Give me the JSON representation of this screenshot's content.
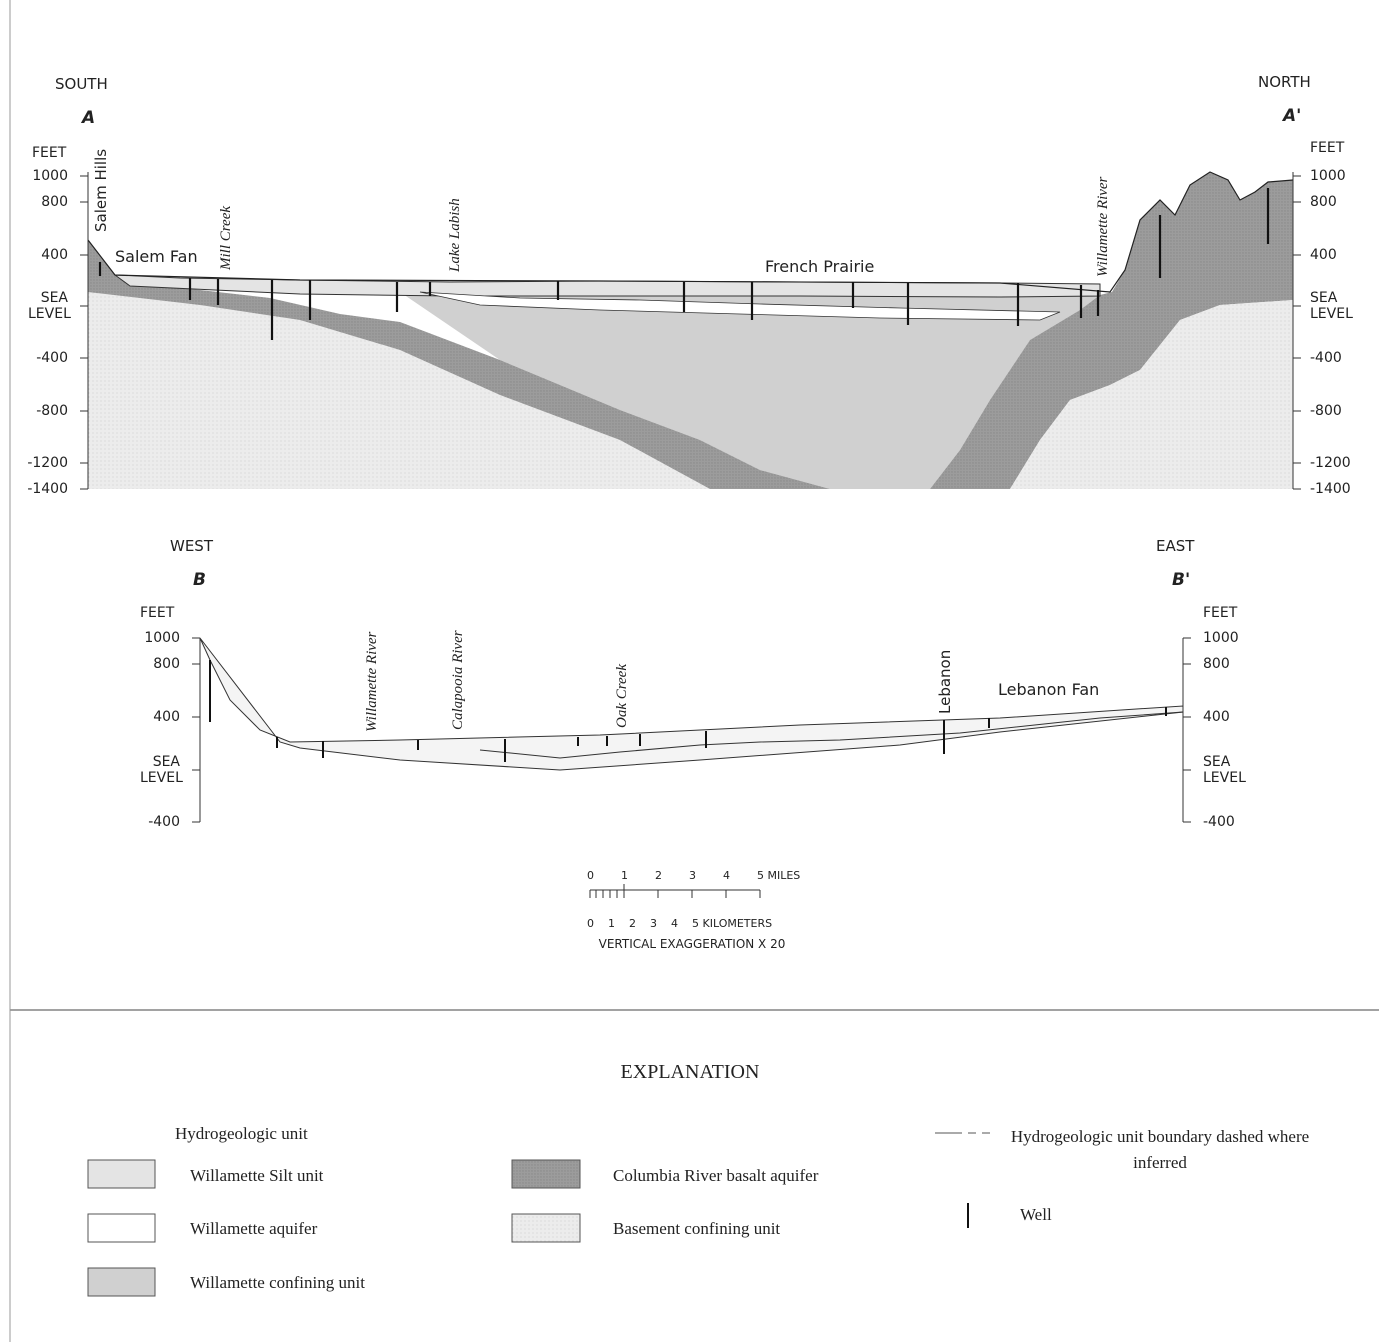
{
  "section_a": {
    "left_direction": "SOUTH",
    "right_direction": "NORTH",
    "left_letter": "A",
    "right_letter": "A'",
    "left_units": "FEET",
    "right_units": "FEET",
    "left_ticks": [
      "1000",
      "800",
      "400",
      "SEA LEVEL",
      "-400",
      "-800",
      "-1200",
      "-1400"
    ],
    "right_ticks": [
      "1000",
      "800",
      "400",
      "SEA LEVEL",
      "-400",
      "-800",
      "-1200",
      "-1400"
    ],
    "places": [
      "Salem Hills",
      "Mill Creek",
      "Lake Labish",
      "Willamette River"
    ],
    "features": [
      "Salem Fan",
      "French Prairie"
    ]
  },
  "section_b": {
    "left_direction": "WEST",
    "right_direction": "EAST",
    "left_letter": "B",
    "right_letter": "B'",
    "left_units": "FEET",
    "right_units": "FEET",
    "left_ticks": [
      "1000",
      "800",
      "400",
      "SEA LEVEL",
      "-400"
    ],
    "right_ticks": [
      "1000",
      "800",
      "400",
      "SEA LEVEL",
      "-400"
    ],
    "places": [
      "Willamette River",
      "Calapooia River",
      "Oak Creek",
      "Lebanon"
    ],
    "features": [
      "Lebanon Fan"
    ]
  },
  "scale": {
    "miles": [
      "0",
      "1",
      "2",
      "3",
      "4",
      "5 MILES"
    ],
    "kilometers": [
      "0",
      "1",
      "2",
      "3",
      "4",
      "5 KILOMETERS"
    ],
    "exaggeration": "VERTICAL EXAGGERATION X 20"
  },
  "explanation": {
    "title": "EXPLANATION",
    "unit_heading": "Hydrogeologic unit",
    "units": [
      "Willamette Silt unit",
      "Willamette aquifer",
      "Willamette confining unit",
      "Columbia River basalt aquifer",
      "Basement confining unit"
    ],
    "boundary": "Hydrogeologic unit boundary dashed where inferred",
    "well": "Well"
  }
}
